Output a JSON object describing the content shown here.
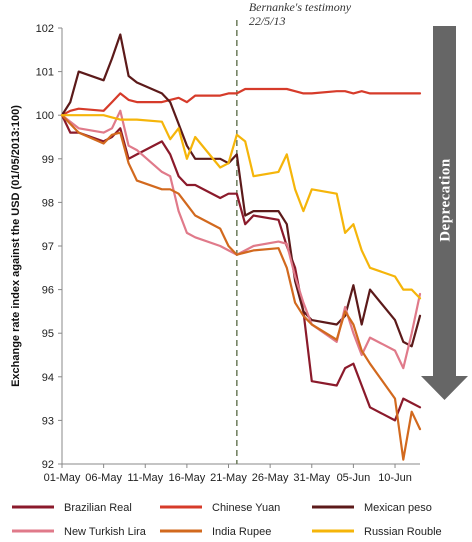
{
  "chart_data": {
    "type": "line",
    "ylabel": "Exchange rate index against the USD (01/05/2013:100)",
    "ylim": [
      92,
      102
    ],
    "yticks": [
      92,
      93,
      94,
      95,
      96,
      97,
      98,
      99,
      100,
      101,
      102
    ],
    "x_range": [
      "2013-05-01",
      "2013-06-13"
    ],
    "x_ticks": [
      {
        "date": "2013-05-01",
        "label": "01-May"
      },
      {
        "date": "2013-05-06",
        "label": "06-May"
      },
      {
        "date": "2013-05-11",
        "label": "11-May"
      },
      {
        "date": "2013-05-16",
        "label": "16-May"
      },
      {
        "date": "2013-05-21",
        "label": "21-May"
      },
      {
        "date": "2013-05-26",
        "label": "26-May"
      },
      {
        "date": "2013-05-31",
        "label": "31-May"
      },
      {
        "date": "2013-06-05",
        "label": "05-Jun"
      },
      {
        "date": "2013-06-10",
        "label": "10-Jun"
      }
    ],
    "annotation": {
      "line1": "Bernanke's testimony",
      "line2": "22/5/13",
      "date": "2013-05-22"
    },
    "arrow_label": "Deprecation",
    "legend_position": "bottom",
    "series": [
      {
        "name": "Brazilian Real",
        "color": "#8B1A2B",
        "dates": [
          "2013-05-01",
          "2013-05-02",
          "2013-05-03",
          "2013-05-06",
          "2013-05-07",
          "2013-05-08",
          "2013-05-09",
          "2013-05-10",
          "2013-05-13",
          "2013-05-14",
          "2013-05-15",
          "2013-05-16",
          "2013-05-17",
          "2013-05-20",
          "2013-05-21",
          "2013-05-22",
          "2013-05-23",
          "2013-05-24",
          "2013-05-27",
          "2013-05-28",
          "2013-05-29",
          "2013-05-30",
          "2013-05-31",
          "2013-06-03",
          "2013-06-04",
          "2013-06-05",
          "2013-06-06",
          "2013-06-07",
          "2013-06-10",
          "2013-06-11",
          "2013-06-12",
          "2013-06-13"
        ],
        "values": [
          100.0,
          99.6,
          99.6,
          99.4,
          99.5,
          99.7,
          99.0,
          99.1,
          99.4,
          99.1,
          98.6,
          98.4,
          98.4,
          98.1,
          98.2,
          98.2,
          97.5,
          97.7,
          97.6,
          97.0,
          96.5,
          95.5,
          93.9,
          93.8,
          94.2,
          94.3,
          93.8,
          93.3,
          93.0,
          93.5,
          93.4,
          93.3
        ]
      },
      {
        "name": "Chinese Yuan",
        "color": "#D63B2A",
        "dates": [
          "2013-05-01",
          "2013-05-02",
          "2013-05-03",
          "2013-05-06",
          "2013-05-07",
          "2013-05-08",
          "2013-05-09",
          "2013-05-10",
          "2013-05-13",
          "2013-05-14",
          "2013-05-15",
          "2013-05-16",
          "2013-05-17",
          "2013-05-20",
          "2013-05-21",
          "2013-05-22",
          "2013-05-23",
          "2013-05-24",
          "2013-05-27",
          "2013-05-28",
          "2013-05-29",
          "2013-05-30",
          "2013-05-31",
          "2013-06-03",
          "2013-06-04",
          "2013-06-05",
          "2013-06-06",
          "2013-06-07",
          "2013-06-10",
          "2013-06-11",
          "2013-06-12",
          "2013-06-13"
        ],
        "values": [
          100.0,
          100.1,
          100.15,
          100.1,
          100.3,
          100.5,
          100.35,
          100.3,
          100.3,
          100.35,
          100.4,
          100.3,
          100.45,
          100.45,
          100.5,
          100.5,
          100.6,
          100.6,
          100.6,
          100.6,
          100.55,
          100.5,
          100.5,
          100.55,
          100.55,
          100.5,
          100.55,
          100.5,
          100.5,
          100.5,
          100.5,
          100.5
        ]
      },
      {
        "name": "Mexican peso",
        "color": "#5C1A1A",
        "dates": [
          "2013-05-01",
          "2013-05-02",
          "2013-05-03",
          "2013-05-06",
          "2013-05-07",
          "2013-05-08",
          "2013-05-09",
          "2013-05-10",
          "2013-05-13",
          "2013-05-14",
          "2013-05-15",
          "2013-05-16",
          "2013-05-17",
          "2013-05-20",
          "2013-05-21",
          "2013-05-22",
          "2013-05-23",
          "2013-05-24",
          "2013-05-27",
          "2013-05-28",
          "2013-05-29",
          "2013-05-30",
          "2013-05-31",
          "2013-06-03",
          "2013-06-04",
          "2013-06-05",
          "2013-06-06",
          "2013-06-07",
          "2013-06-10",
          "2013-06-11",
          "2013-06-12",
          "2013-06-13"
        ],
        "values": [
          100.0,
          100.3,
          101.0,
          100.8,
          101.3,
          101.85,
          100.9,
          100.75,
          100.5,
          100.3,
          99.8,
          99.3,
          99.0,
          99.0,
          98.9,
          99.1,
          97.7,
          97.8,
          97.8,
          97.5,
          96.2,
          95.5,
          95.3,
          95.2,
          95.4,
          96.1,
          95.2,
          96.0,
          95.3,
          94.8,
          94.7,
          95.4
        ]
      },
      {
        "name": "New Turkish Lira",
        "color": "#E07A8A",
        "dates": [
          "2013-05-01",
          "2013-05-02",
          "2013-05-03",
          "2013-05-06",
          "2013-05-07",
          "2013-05-08",
          "2013-05-09",
          "2013-05-10",
          "2013-05-13",
          "2013-05-14",
          "2013-05-15",
          "2013-05-16",
          "2013-05-17",
          "2013-05-20",
          "2013-05-21",
          "2013-05-22",
          "2013-05-23",
          "2013-05-24",
          "2013-05-27",
          "2013-05-28",
          "2013-05-29",
          "2013-05-30",
          "2013-05-31",
          "2013-06-03",
          "2013-06-04",
          "2013-06-05",
          "2013-06-06",
          "2013-06-07",
          "2013-06-10",
          "2013-06-11",
          "2013-06-12",
          "2013-06-13"
        ],
        "values": [
          100.0,
          99.85,
          99.7,
          99.6,
          99.7,
          100.1,
          99.3,
          99.2,
          98.7,
          98.6,
          97.8,
          97.3,
          97.2,
          97.0,
          96.9,
          96.8,
          96.9,
          97.0,
          97.1,
          97.05,
          96.3,
          95.7,
          95.2,
          94.8,
          95.6,
          95.0,
          94.5,
          94.9,
          94.6,
          94.2,
          95.0,
          95.9
        ]
      },
      {
        "name": "India Rupee",
        "color": "#D2691E",
        "dates": [
          "2013-05-01",
          "2013-05-02",
          "2013-05-03",
          "2013-05-06",
          "2013-05-07",
          "2013-05-08",
          "2013-05-09",
          "2013-05-10",
          "2013-05-13",
          "2013-05-14",
          "2013-05-15",
          "2013-05-16",
          "2013-05-17",
          "2013-05-20",
          "2013-05-21",
          "2013-05-22",
          "2013-05-23",
          "2013-05-24",
          "2013-05-27",
          "2013-05-28",
          "2013-05-29",
          "2013-05-30",
          "2013-05-31",
          "2013-06-03",
          "2013-06-04",
          "2013-06-05",
          "2013-06-06",
          "2013-06-07",
          "2013-06-10",
          "2013-06-11",
          "2013-06-12",
          "2013-06-13"
        ],
        "values": [
          100.0,
          99.8,
          99.6,
          99.35,
          99.55,
          99.6,
          98.9,
          98.5,
          98.3,
          98.3,
          98.2,
          97.95,
          97.7,
          97.4,
          97.0,
          96.8,
          96.85,
          96.9,
          96.95,
          96.5,
          95.7,
          95.4,
          95.2,
          94.85,
          95.5,
          95.2,
          94.6,
          94.3,
          93.5,
          92.1,
          93.2,
          92.8
        ]
      },
      {
        "name": "Russian Rouble",
        "color": "#F5B50A",
        "dates": [
          "2013-05-01",
          "2013-05-02",
          "2013-05-03",
          "2013-05-06",
          "2013-05-07",
          "2013-05-08",
          "2013-05-09",
          "2013-05-10",
          "2013-05-13",
          "2013-05-14",
          "2013-05-15",
          "2013-05-16",
          "2013-05-17",
          "2013-05-20",
          "2013-05-21",
          "2013-05-22",
          "2013-05-23",
          "2013-05-24",
          "2013-05-27",
          "2013-05-28",
          "2013-05-29",
          "2013-05-30",
          "2013-05-31",
          "2013-06-03",
          "2013-06-04",
          "2013-06-05",
          "2013-06-06",
          "2013-06-07",
          "2013-06-10",
          "2013-06-11",
          "2013-06-12",
          "2013-06-13"
        ],
        "values": [
          100.0,
          100.0,
          100.0,
          100.0,
          99.95,
          99.9,
          99.9,
          99.9,
          99.85,
          99.45,
          99.7,
          99.0,
          99.5,
          98.8,
          98.9,
          99.55,
          99.4,
          98.6,
          98.7,
          99.1,
          98.3,
          97.8,
          98.3,
          98.2,
          97.3,
          97.5,
          96.9,
          96.5,
          96.3,
          96.0,
          96.0,
          95.8
        ]
      }
    ]
  }
}
